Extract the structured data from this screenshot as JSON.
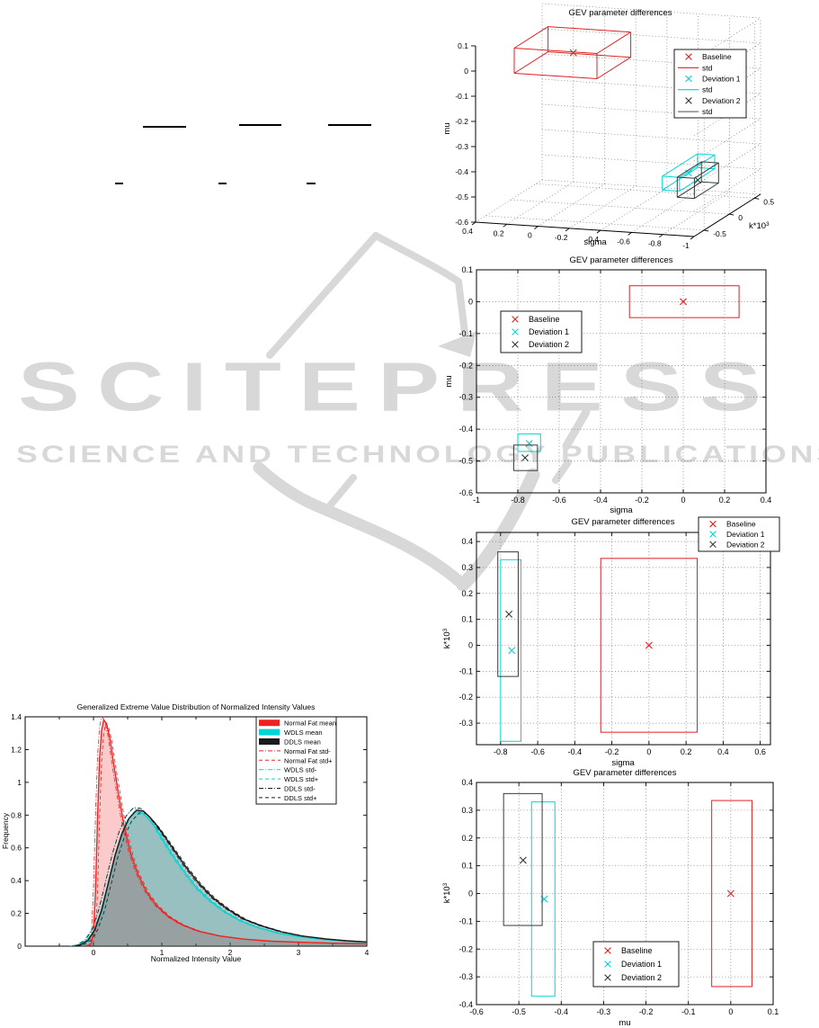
{
  "page": {
    "background": "#ffffff",
    "watermark": {
      "title": "SCITEPRESS",
      "subtitle": "SCIENCE AND TECHNOLOGY PUBLICATIONS",
      "color": "#d8d8d8",
      "logo": "scitepress-paper-plane-and-book"
    },
    "equation_line_fragments": [
      [
        159,
        140,
        48
      ],
      [
        266,
        138,
        47
      ],
      [
        365,
        138,
        48
      ],
      [
        128,
        203,
        9
      ],
      [
        243,
        203,
        9
      ],
      [
        341,
        203,
        10
      ]
    ]
  },
  "colors": {
    "baseline": "#e02020",
    "deviation1": "#00d5d5",
    "deviation2": "#383838",
    "grid": "#606060"
  },
  "chart_data": [
    {
      "id": "plot3d",
      "type": "scatter3d",
      "title": "GEV parameter differences",
      "xlabel": "sigma",
      "ylabel": {
        "t": "k*10",
        "sup": "3"
      },
      "zlabel": "mu",
      "sigma_lim": [
        0.4,
        -1
      ],
      "k_lim": [
        -0.7,
        0.62
      ],
      "mu_lim": [
        -0.6,
        0.1
      ],
      "sigma_ticks": [
        0.4,
        0.2,
        0,
        -0.2,
        -0.4,
        -0.6,
        -0.8,
        -1
      ],
      "k_ticks": [
        -0.5,
        0,
        0.5
      ],
      "mu_ticks": [
        0.1,
        0,
        -0.1,
        -0.2,
        -0.3,
        -0.4,
        -0.5,
        -0.6
      ],
      "grid": true,
      "series": [
        {
          "name": "Baseline",
          "color": "#e02020",
          "center": [
            0,
            0,
            0
          ],
          "box": [
            [
              -0.26,
              0.27
            ],
            [
              -0.335,
              0.335
            ],
            [
              -0.05,
              0.05
            ]
          ]
        },
        {
          "name": "Deviation 1",
          "color": "#00d5d5",
          "center": [
            -0.745,
            -0.02,
            -0.445
          ],
          "box": [
            [
              -0.8,
              -0.69
            ],
            [
              -0.37,
              0.33
            ],
            [
              -0.47,
              -0.415
            ]
          ]
        },
        {
          "name": "Deviation 2",
          "color": "#383838",
          "center": [
            -0.76,
            0.12,
            -0.49
          ],
          "box": [
            [
              -0.815,
              -0.705
            ],
            [
              -0.12,
              0.36
            ],
            [
              -0.53,
              -0.45
            ]
          ]
        }
      ],
      "legend": {
        "position": "upper right",
        "items": [
          {
            "label": "Baseline",
            "marker": "x",
            "color": "#e02020"
          },
          {
            "label": "std",
            "marker": "line",
            "color": "#e02020"
          },
          {
            "label": "Deviation 1",
            "marker": "x",
            "color": "#00d5d5"
          },
          {
            "label": "std",
            "marker": "line",
            "color": "#00d5d5"
          },
          {
            "label": "Deviation 2",
            "marker": "x",
            "color": "#383838"
          },
          {
            "label": "std",
            "marker": "line",
            "color": "#707070"
          }
        ]
      }
    },
    {
      "id": "plot2",
      "type": "scatter",
      "title": "GEV parameter differences",
      "xlabel": "sigma",
      "ylabel": "mu",
      "xlim": [
        -1,
        0.4
      ],
      "ylim": [
        -0.6,
        0.1
      ],
      "xticks": [
        -1,
        -0.8,
        -0.6,
        -0.4,
        -0.2,
        0,
        0.2,
        0.4
      ],
      "yticks": [
        0.1,
        0,
        -0.1,
        -0.2,
        -0.3,
        -0.4,
        -0.5,
        -0.6
      ],
      "grid": true,
      "series": [
        {
          "name": "Baseline",
          "color": "#e02020",
          "center": [
            0,
            0
          ],
          "box": [
            [
              -0.26,
              0.27
            ],
            [
              -0.05,
              0.05
            ]
          ]
        },
        {
          "name": "Deviation 1",
          "color": "#00d5d5",
          "center": [
            -0.745,
            -0.445
          ],
          "box": [
            [
              -0.8,
              -0.69
            ],
            [
              -0.47,
              -0.415
            ]
          ]
        },
        {
          "name": "Deviation 2",
          "color": "#383838",
          "center": [
            -0.765,
            -0.49
          ],
          "box": [
            [
              -0.82,
              -0.705
            ],
            [
              -0.53,
              -0.45
            ]
          ]
        }
      ],
      "legend": {
        "position": "upper left",
        "items": [
          {
            "label": "Baseline",
            "marker": "x",
            "color": "#e02020"
          },
          {
            "label": "Deviation 1",
            "marker": "x",
            "color": "#00d5d5"
          },
          {
            "label": "Deviation 2",
            "marker": "x",
            "color": "#383838"
          }
        ]
      }
    },
    {
      "id": "plot3",
      "type": "scatter",
      "title": "GEV parameter differences",
      "xlabel": "sigma",
      "ylabel": {
        "t": "k*10",
        "sup": "3"
      },
      "xlim": [
        -0.93,
        0.655
      ],
      "ylim": [
        -0.383,
        0.435
      ],
      "xticks": [
        -0.8,
        -0.6,
        -0.4,
        -0.2,
        0,
        0.2,
        0.4,
        0.6
      ],
      "yticks": [
        0.4,
        0.3,
        0.2,
        0.1,
        0,
        -0.1,
        -0.2,
        -0.3
      ],
      "grid": true,
      "series": [
        {
          "name": "Baseline",
          "color": "#e02020",
          "center": [
            0,
            0
          ],
          "box": [
            [
              -0.26,
              0.26
            ],
            [
              -0.335,
              0.335
            ]
          ]
        },
        {
          "name": "Deviation 1",
          "color": "#00d5d5",
          "center": [
            -0.74,
            -0.02
          ],
          "box": [
            [
              -0.8,
              -0.69
            ],
            [
              -0.37,
              0.33
            ]
          ]
        },
        {
          "name": "Deviation 2",
          "color": "#383838",
          "center": [
            -0.755,
            0.12
          ],
          "box": [
            [
              -0.815,
              -0.705
            ],
            [
              -0.12,
              0.36
            ]
          ]
        }
      ],
      "legend": {
        "position": "upper right outside",
        "items": [
          {
            "label": "Baseline",
            "marker": "x",
            "color": "#e02020"
          },
          {
            "label": "Deviation 1",
            "marker": "x",
            "color": "#00d5d5"
          },
          {
            "label": "Deviation 2",
            "marker": "x",
            "color": "#383838"
          }
        ]
      }
    },
    {
      "id": "plot4",
      "type": "scatter",
      "title": "GEV parameter differences",
      "xlabel": "mu",
      "ylabel": {
        "t": "k*10",
        "sup": "3"
      },
      "xlim": [
        -0.6,
        0.1
      ],
      "ylim": [
        -0.4,
        0.4
      ],
      "xticks": [
        -0.6,
        -0.5,
        -0.4,
        -0.3,
        -0.2,
        -0.1,
        0,
        0.1
      ],
      "yticks": [
        0.4,
        0.3,
        0.2,
        0.1,
        0,
        -0.1,
        -0.2,
        -0.3,
        -0.4
      ],
      "grid": true,
      "series": [
        {
          "name": "Baseline",
          "color": "#e02020",
          "center": [
            0,
            0
          ],
          "box": [
            [
              -0.045,
              0.05
            ],
            [
              -0.335,
              0.335
            ]
          ]
        },
        {
          "name": "Deviation 1",
          "color": "#00d5d5",
          "center": [
            -0.44,
            -0.02
          ],
          "box": [
            [
              -0.47,
              -0.415
            ],
            [
              -0.37,
              0.33
            ]
          ]
        },
        {
          "name": "Deviation 2",
          "color": "#383838",
          "center": [
            -0.49,
            0.12
          ],
          "box": [
            [
              -0.536,
              -0.445
            ],
            [
              -0.115,
              0.36
            ]
          ]
        }
      ],
      "legend": {
        "position": "lower center",
        "items": [
          {
            "label": "Baseline",
            "marker": "x",
            "color": "#e02020"
          },
          {
            "label": "Deviation 1",
            "marker": "x",
            "color": "#00d5d5"
          },
          {
            "label": "Deviation 2",
            "marker": "x",
            "color": "#383838"
          }
        ]
      }
    },
    {
      "id": "plotdist",
      "type": "area",
      "title": "Generalized Extreme Value Distribution of Normalized Intensity Values",
      "xlabel": "Normalized Intensity Value",
      "ylabel": "Frequency",
      "xlim": [
        -1,
        4
      ],
      "ylim": [
        0,
        1.4
      ],
      "xticks": [
        0,
        1,
        2,
        3,
        4
      ],
      "xticks_minor": [
        -0.5,
        0.5,
        1.5,
        2.5,
        3.5
      ],
      "yticks": [
        0,
        0.2,
        0.4,
        0.6,
        0.8,
        1,
        1.2,
        1.4
      ],
      "grid": false,
      "series": [
        {
          "name": "Normal Fat mean",
          "color": "#ee2222",
          "role": "mean",
          "points": [
            [
              -0.12,
              0
            ],
            [
              -0.04,
              0.01
            ],
            [
              0,
              0.08
            ],
            [
              0.03,
              0.35
            ],
            [
              0.06,
              0.8
            ],
            [
              0.09,
              1.15
            ],
            [
              0.12,
              1.32
            ],
            [
              0.15,
              1.38
            ],
            [
              0.19,
              1.36
            ],
            [
              0.24,
              1.27
            ],
            [
              0.3,
              1.1
            ],
            [
              0.37,
              0.92
            ],
            [
              0.45,
              0.73
            ],
            [
              0.55,
              0.56
            ],
            [
              0.65,
              0.44
            ],
            [
              0.78,
              0.33
            ],
            [
              0.92,
              0.25
            ],
            [
              1.1,
              0.18
            ],
            [
              1.3,
              0.13
            ],
            [
              1.55,
              0.09
            ],
            [
              1.85,
              0.062
            ],
            [
              2.2,
              0.043
            ],
            [
              2.6,
              0.03
            ],
            [
              3,
              0.024
            ],
            [
              3.5,
              0.018
            ],
            [
              4,
              0.015
            ]
          ]
        },
        {
          "name": "WDLS mean",
          "color": "#00d5d5",
          "role": "mean",
          "points": [
            [
              -0.3,
              0
            ],
            [
              -0.2,
              0.01
            ],
            [
              -0.1,
              0.035
            ],
            [
              0,
              0.09
            ],
            [
              0.1,
              0.2
            ],
            [
              0.2,
              0.36
            ],
            [
              0.3,
              0.53
            ],
            [
              0.4,
              0.67
            ],
            [
              0.5,
              0.77
            ],
            [
              0.6,
              0.82
            ],
            [
              0.7,
              0.82
            ],
            [
              0.8,
              0.78
            ],
            [
              0.9,
              0.73
            ],
            [
              1,
              0.66
            ],
            [
              1.15,
              0.56
            ],
            [
              1.3,
              0.47
            ],
            [
              1.5,
              0.36
            ],
            [
              1.7,
              0.28
            ],
            [
              1.9,
              0.215
            ],
            [
              2.15,
              0.155
            ],
            [
              2.4,
              0.115
            ],
            [
              2.7,
              0.08
            ],
            [
              3,
              0.058
            ],
            [
              3.4,
              0.04
            ],
            [
              3.7,
              0.03
            ],
            [
              4,
              0.024
            ]
          ]
        },
        {
          "name": "DDLS mean",
          "color": "#1a1a1a",
          "role": "mean",
          "points": [
            [
              -0.28,
              0
            ],
            [
              -0.18,
              0.01
            ],
            [
              -0.08,
              0.035
            ],
            [
              0.02,
              0.1
            ],
            [
              0.12,
              0.22
            ],
            [
              0.22,
              0.39
            ],
            [
              0.32,
              0.56
            ],
            [
              0.42,
              0.69
            ],
            [
              0.52,
              0.78
            ],
            [
              0.63,
              0.83
            ],
            [
              0.73,
              0.825
            ],
            [
              0.83,
              0.785
            ],
            [
              0.93,
              0.735
            ],
            [
              1.05,
              0.665
            ],
            [
              1.2,
              0.575
            ],
            [
              1.35,
              0.485
            ],
            [
              1.55,
              0.38
            ],
            [
              1.75,
              0.295
            ],
            [
              1.95,
              0.23
            ],
            [
              2.2,
              0.165
            ],
            [
              2.45,
              0.125
            ],
            [
              2.75,
              0.088
            ],
            [
              3.05,
              0.062
            ],
            [
              3.4,
              0.044
            ],
            [
              3.7,
              0.033
            ],
            [
              4,
              0.026
            ]
          ]
        },
        {
          "name": "Normal Fat std-",
          "color": "#ee2222",
          "role": "std",
          "base": 0,
          "dash": "dashdot",
          "xshift": -0.03,
          "yscale": 1.015
        },
        {
          "name": "Normal Fat std+",
          "color": "#ee2222",
          "role": "std",
          "base": 0,
          "dash": "dash",
          "xshift": 0.03,
          "yscale": 0.985
        },
        {
          "name": "WDLS std-",
          "color": "#00d5d5",
          "role": "std",
          "base": 1,
          "dash": "dashdot",
          "xshift": -0.04,
          "yscale": 1.02
        },
        {
          "name": "WDLS std+",
          "color": "#00d5d5",
          "role": "std",
          "base": 1,
          "dash": "dash",
          "xshift": 0.04,
          "yscale": 0.98
        },
        {
          "name": "DDLS std-",
          "color": "#1a1a1a",
          "role": "std",
          "base": 2,
          "dash": "dashdot",
          "xshift": -0.04,
          "yscale": 1.02
        },
        {
          "name": "DDLS std+",
          "color": "#1a1a1a",
          "role": "std",
          "base": 2,
          "dash": "dash",
          "xshift": 0.04,
          "yscale": 0.98
        }
      ],
      "legend": {
        "position": "upper right",
        "items": [
          {
            "label": "Normal Fat mean",
            "marker": "fill",
            "color": "#ee2222"
          },
          {
            "label": "WDLS mean",
            "marker": "fill",
            "color": "#00d5d5"
          },
          {
            "label": "DDLS mean",
            "marker": "fill",
            "color": "#1a1a1a"
          },
          {
            "label": "Normal Fat std-",
            "marker": "dashdot",
            "color": "#ee2222"
          },
          {
            "label": "Normal Fat std+",
            "marker": "dash",
            "color": "#ee2222"
          },
          {
            "label": "WDLS std-",
            "marker": "dashdot",
            "color": "#00d5d5"
          },
          {
            "label": "WDLS std+",
            "marker": "dash",
            "color": "#00d5d5"
          },
          {
            "label": "DDLS std-",
            "marker": "dashdot",
            "color": "#1a1a1a"
          },
          {
            "label": "DDLS std+",
            "marker": "dash",
            "color": "#1a1a1a"
          }
        ]
      }
    }
  ]
}
